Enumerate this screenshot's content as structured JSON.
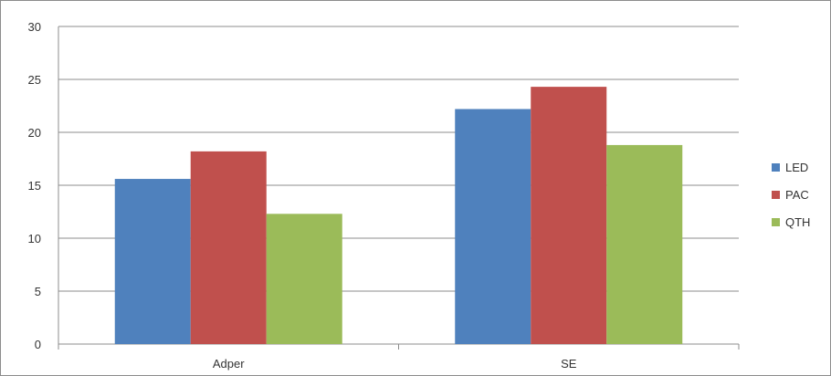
{
  "chart_data": {
    "type": "bar",
    "categories": [
      "Adper",
      "SE"
    ],
    "series": [
      {
        "name": "LED",
        "values": [
          15.6,
          22.2
        ],
        "color": "#4f81bd"
      },
      {
        "name": "PAC",
        "values": [
          18.2,
          24.3
        ],
        "color": "#c0504d"
      },
      {
        "name": "QTH",
        "values": [
          12.3,
          18.8
        ],
        "color": "#9bbb59"
      }
    ],
    "ylim": [
      0,
      30
    ],
    "yticks": [
      "0",
      "5",
      "10",
      "15",
      "20",
      "25",
      "30"
    ],
    "grid": true,
    "legend": "right"
  }
}
